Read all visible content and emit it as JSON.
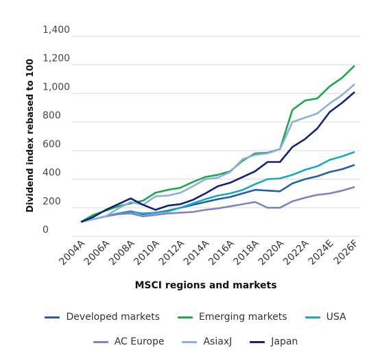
{
  "chart_data": {
    "type": "line",
    "ylabel": "Dividend index rebased to 100",
    "xlabel": "MSCI regions and markets",
    "ylim": [
      0,
      1400
    ],
    "yticks": [
      0,
      200,
      400,
      600,
      800,
      1000,
      1200,
      1400
    ],
    "ytick_labels": [
      "0",
      "200",
      "400",
      "600",
      "800",
      "1,000",
      "1,200",
      "1,400"
    ],
    "x": [
      2004,
      2005,
      2006,
      2007,
      2008,
      2009,
      2010,
      2011,
      2012,
      2013,
      2014,
      2015,
      2016,
      2017,
      2018,
      2019,
      2020,
      2021,
      2022,
      2023,
      2024,
      2025,
      2026
    ],
    "xticks": [
      2004,
      2006,
      2008,
      2010,
      2012,
      2014,
      2016,
      2018,
      2020,
      2022,
      2024,
      2026
    ],
    "xtick_labels": [
      "2004A",
      "2006A",
      "2008A",
      "2010A",
      "2012A",
      "2014A",
      "2016A",
      "2018A",
      "2020A",
      "2022A",
      "2024E",
      "2026F"
    ],
    "grid": "horizontal",
    "legend_position": "bottom",
    "series": [
      {
        "name": "Developed markets",
        "color": "#1f5fa8",
        "values": [
          100,
          120,
          140,
          160,
          175,
          155,
          165,
          180,
          200,
          220,
          240,
          260,
          275,
          300,
          325,
          320,
          315,
          370,
          400,
          420,
          450,
          470,
          500
        ]
      },
      {
        "name": "Emerging markets",
        "color": "#1aa84b",
        "values": [
          100,
          150,
          180,
          210,
          230,
          250,
          305,
          325,
          340,
          380,
          415,
          430,
          455,
          530,
          580,
          585,
          610,
          885,
          950,
          965,
          1050,
          1110,
          1195
        ]
      },
      {
        "name": "USA",
        "color": "#19a8c4",
        "values": [
          100,
          120,
          140,
          160,
          170,
          160,
          165,
          175,
          200,
          230,
          260,
          285,
          300,
          325,
          365,
          400,
          405,
          430,
          465,
          490,
          535,
          560,
          590
        ]
      },
      {
        "name": "AC Europe",
        "color": "#7f83c4",
        "values": [
          100,
          120,
          140,
          155,
          160,
          140,
          150,
          160,
          165,
          170,
          185,
          195,
          210,
          225,
          240,
          200,
          200,
          245,
          270,
          290,
          300,
          320,
          345
        ]
      },
      {
        "name": "AsiaxJ",
        "color": "#8ab0dc",
        "values": [
          100,
          120,
          140,
          195,
          240,
          220,
          280,
          285,
          305,
          350,
          400,
          410,
          450,
          540,
          570,
          580,
          610,
          800,
          830,
          860,
          930,
          990,
          1065
        ]
      },
      {
        "name": "Japan",
        "color": "#10217a",
        "values": [
          100,
          135,
          185,
          225,
          265,
          220,
          185,
          215,
          225,
          255,
          300,
          350,
          375,
          415,
          455,
          520,
          520,
          625,
          680,
          755,
          870,
          935,
          1010
        ]
      }
    ]
  }
}
